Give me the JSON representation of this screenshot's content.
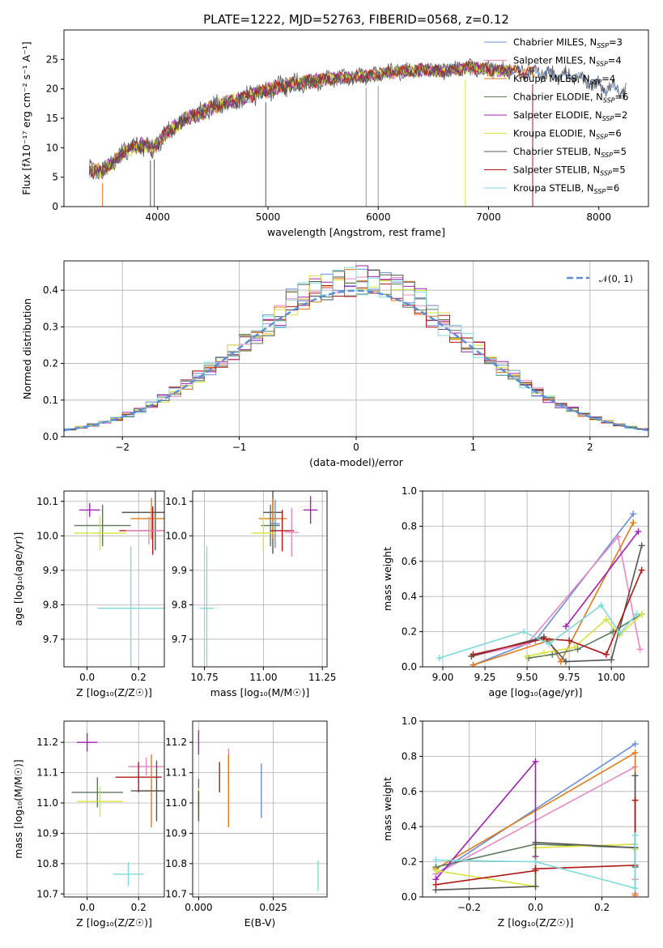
{
  "figure": {
    "title": "PLATE=1222, MJD=52763, FIBERID=0568, z=0.12"
  },
  "colors": {
    "Chabrier MILES": "#6a8fd6",
    "Salpeter MILES": "#e889c4",
    "Kroupa MILES": "#e07b1a",
    "Chabrier ELODIE": "#5a7a5a",
    "Salpeter ELODIE": "#a020b0",
    "Kroupa ELODIE": "#d9e33a",
    "Chabrier STELIB": "#555555",
    "Salpeter STELIB": "#b01818",
    "Kroupa STELIB": "#7fdada"
  },
  "chart_data": [
    {
      "id": "spectrum",
      "type": "line",
      "title": "PLATE=1222, MJD=52763, FIBERID=0568, z=0.12",
      "xlabel": "wavelength [Angstrom, rest frame]",
      "ylabel": "Flux [fλ10⁻¹⁷ erg cm⁻² s⁻¹ A⁻¹]",
      "xlim": [
        3150,
        8450
      ],
      "ylim": [
        0,
        30
      ],
      "xticks": [
        4000,
        5000,
        6000,
        7000,
        8000
      ],
      "yticks": [
        0,
        5,
        10,
        15,
        20,
        25
      ],
      "grid": false,
      "legend_position": "right",
      "legend": [
        {
          "label": "Chabrier MILES, N",
          "sub": "SSP",
          "suffix": "=3",
          "key": "Chabrier MILES"
        },
        {
          "label": "Salpeter MILES, N",
          "sub": "SSP",
          "suffix": "=4",
          "key": "Salpeter MILES"
        },
        {
          "label": "Kroupa MILES, N",
          "sub": "SSP",
          "suffix": "=4",
          "key": "Kroupa MILES"
        },
        {
          "label": "Chabrier ELODIE, N",
          "sub": "SSP",
          "suffix": "=6",
          "key": "Chabrier ELODIE"
        },
        {
          "label": "Salpeter ELODIE, N",
          "sub": "SSP",
          "suffix": "=2",
          "key": "Salpeter ELODIE"
        },
        {
          "label": "Kroupa ELODIE, N",
          "sub": "SSP",
          "suffix": "=6",
          "key": "Kroupa ELODIE"
        },
        {
          "label": "Chabrier STELIB, N",
          "sub": "SSP",
          "suffix": "=5",
          "key": "Chabrier STELIB"
        },
        {
          "label": "Salpeter STELIB, N",
          "sub": "SSP",
          "suffix": "=5",
          "key": "Salpeter STELIB"
        },
        {
          "label": "Kroupa STELIB, N",
          "sub": "SSP",
          "suffix": "=6",
          "key": "Kroupa STELIB"
        }
      ],
      "continuum": {
        "x": [
          3380,
          3500,
          3600,
          3700,
          3800,
          3900,
          3950,
          4050,
          4150,
          4250,
          4350,
          4450,
          4550,
          4700,
          4850,
          5000,
          5200,
          5400,
          5600,
          5800,
          6000,
          6200,
          6400,
          6600,
          6800,
          7000,
          7200,
          7400,
          7600,
          7800,
          8000,
          8200
        ],
        "y": [
          6.2,
          6.0,
          7.5,
          9.5,
          10.2,
          10.5,
          9.5,
          12.0,
          13.5,
          15.0,
          15.5,
          16.5,
          17.3,
          18.0,
          19.0,
          19.8,
          20.8,
          21.3,
          21.8,
          22.0,
          22.5,
          23.0,
          23.2,
          23.0,
          23.6,
          23.3,
          23.0,
          22.8,
          22.5,
          22.0,
          20.5,
          19.8
        ]
      },
      "absorption_dips_angstrom": [
        3500,
        3934,
        3969,
        4980,
        5890,
        6000,
        6790,
        7400
      ]
    },
    {
      "id": "residuals",
      "type": "histogram",
      "xlabel": "(data-model)/error",
      "ylabel": "Normed distribution",
      "xlim": [
        -2.5,
        2.5
      ],
      "ylim": [
        0,
        0.48
      ],
      "xticks": [
        -2,
        -1,
        0,
        1,
        2
      ],
      "yticks": [
        0.0,
        0.1,
        0.2,
        0.3,
        0.4
      ],
      "grid": true,
      "bin_width": 0.1,
      "legend": {
        "label": "𝒩(0, 1)",
        "position": "top-right"
      }
    },
    {
      "id": "age_vs_Z",
      "type": "scatter",
      "xlabel": "Z [log₁₀(Z/Z☉)]",
      "ylabel": "age  [log₁₀(age/yr)]",
      "xlim": [
        -0.09,
        0.3
      ],
      "ylim": [
        9.62,
        10.13
      ],
      "xticks": [
        0.0,
        0.2
      ],
      "yticks": [
        9.7,
        9.8,
        9.9,
        10.0,
        10.1
      ],
      "grid": true,
      "points": [
        {
          "series": "Salpeter ELODIE",
          "x": 0.01,
          "xerr": 0.04,
          "y": 10.075,
          "yerr": 0.02
        },
        {
          "series": "Chabrier STELIB",
          "x": 0.265,
          "xerr": 0.13,
          "y": 10.068,
          "yerr": 0.11
        },
        {
          "series": "Kroupa MILES",
          "x": 0.25,
          "xerr": 0.08,
          "y": 10.05,
          "yerr": 0.06
        },
        {
          "series": "Chabrier ELODIE",
          "x": 0.06,
          "xerr": 0.11,
          "y": 10.03,
          "yerr": 0.06
        },
        {
          "series": "Salpeter STELIB",
          "x": 0.255,
          "xerr": 0.13,
          "y": 10.015,
          "yerr": 0.07
        },
        {
          "series": "Salpeter MILES",
          "x": 0.24,
          "xerr": 0.09,
          "y": 10.015,
          "yerr": 0.04
        },
        {
          "series": "Kroupa ELODIE",
          "x": 0.05,
          "xerr": 0.1,
          "y": 10.008,
          "yerr": 0.05
        },
        {
          "series": "Kroupa STELIB",
          "x": 0.17,
          "xerr": 0.13,
          "y": 9.79,
          "yerr": 0.18
        }
      ]
    },
    {
      "id": "age_vs_mass",
      "type": "scatter",
      "xlabel": "mass [log₁₀(M/M☉)]",
      "ylabel": "",
      "xlim": [
        10.7,
        11.27
      ],
      "ylim": [
        9.62,
        10.13
      ],
      "xticks": [
        10.75,
        11.0,
        11.25
      ],
      "yticks": [
        9.7,
        9.8,
        9.9,
        10.0,
        10.1
      ],
      "grid": true,
      "points": [
        {
          "series": "Salpeter ELODIE",
          "x": 11.2,
          "xerr": 0.03,
          "y": 10.075,
          "yerr": 0.04
        },
        {
          "series": "Chabrier STELIB",
          "x": 11.04,
          "xerr": 0.04,
          "y": 10.068,
          "yerr": 0.12
        },
        {
          "series": "Kroupa MILES",
          "x": 11.04,
          "xerr": 0.06,
          "y": 10.05,
          "yerr": 0.06
        },
        {
          "series": "Chabrier MILES",
          "x": 11.05,
          "xerr": 0.02,
          "y": 10.035,
          "yerr": 0.07
        },
        {
          "series": "Chabrier ELODIE",
          "x": 11.03,
          "xerr": 0.04,
          "y": 10.03,
          "yerr": 0.06
        },
        {
          "series": "Salpeter STELIB",
          "x": 11.08,
          "xerr": 0.05,
          "y": 10.015,
          "yerr": 0.06
        },
        {
          "series": "Salpeter MILES",
          "x": 11.12,
          "xerr": 0.03,
          "y": 10.01,
          "yerr": 0.07
        },
        {
          "series": "Kroupa ELODIE",
          "x": 11.0,
          "xerr": 0.05,
          "y": 10.008,
          "yerr": 0.05
        },
        {
          "series": "Kroupa STELIB",
          "x": 10.76,
          "xerr": 0.03,
          "y": 9.79,
          "yerr": 0.18
        }
      ]
    },
    {
      "id": "weight_vs_age",
      "type": "line",
      "xlabel": "age  [log₁₀(age/yr)]",
      "ylabel": "mass weight",
      "xlim": [
        8.88,
        10.22
      ],
      "ylim": [
        0,
        1
      ],
      "xticks": [
        9.0,
        9.25,
        9.5,
        9.75,
        10.0
      ],
      "yticks": [
        0.0,
        0.2,
        0.4,
        0.6,
        0.8,
        1.0
      ],
      "grid": true,
      "series": [
        {
          "name": "Chabrier MILES",
          "x": [
            9.18,
            9.55,
            10.13
          ],
          "y": [
            0.01,
            0.15,
            0.87
          ]
        },
        {
          "name": "Salpeter MILES",
          "x": [
            9.17,
            9.5,
            10.04,
            10.17
          ],
          "y": [
            0.06,
            0.13,
            0.74,
            0.1
          ]
        },
        {
          "name": "Kroupa MILES",
          "x": [
            9.18,
            9.63,
            9.7,
            10.13
          ],
          "y": [
            0.01,
            0.15,
            0.03,
            0.82
          ]
        },
        {
          "name": "Chabrier ELODIE",
          "x": [
            9.51,
            9.65,
            9.8,
            10.01,
            10.18
          ],
          "y": [
            0.05,
            0.07,
            0.1,
            0.2,
            0.3
          ]
        },
        {
          "name": "Salpeter ELODIE",
          "x": [
            9.73,
            10.16
          ],
          "y": [
            0.23,
            0.77
          ]
        },
        {
          "name": "Kroupa ELODIE",
          "x": [
            9.5,
            9.6,
            9.78,
            9.97,
            10.05,
            10.18
          ],
          "y": [
            0.06,
            0.08,
            0.11,
            0.27,
            0.18,
            0.3
          ]
        },
        {
          "name": "Chabrier STELIB",
          "x": [
            9.17,
            9.6,
            9.73,
            10.0,
            10.18
          ],
          "y": [
            0.06,
            0.17,
            0.03,
            0.04,
            0.69
          ]
        },
        {
          "name": "Salpeter STELIB",
          "x": [
            9.18,
            9.6,
            9.75,
            9.97,
            10.18
          ],
          "y": [
            0.07,
            0.16,
            0.15,
            0.07,
            0.55
          ]
        },
        {
          "name": "Kroupa STELIB",
          "x": [
            8.98,
            9.48,
            9.63,
            9.94,
            10.05,
            10.15
          ],
          "y": [
            0.05,
            0.2,
            0.13,
            0.35,
            0.19,
            0.3
          ]
        }
      ]
    },
    {
      "id": "mass_vs_Z",
      "type": "scatter",
      "xlabel": "Z [log₁₀(Z/Z☉)]",
      "ylabel": "mass [log₁₀(M/M☉)]",
      "xlim": [
        -0.09,
        0.3
      ],
      "ylim": [
        10.69,
        11.27
      ],
      "xticks": [
        0.0,
        0.2
      ],
      "yticks": [
        10.7,
        10.8,
        10.9,
        11.0,
        11.1,
        11.2
      ],
      "grid": true,
      "points": [
        {
          "series": "Salpeter ELODIE",
          "x": 0.0,
          "xerr": 0.04,
          "y": 11.2,
          "yerr": 0.03
        },
        {
          "series": "Salpeter MILES",
          "x": 0.23,
          "xerr": 0.07,
          "y": 11.12,
          "yerr": 0.03
        },
        {
          "series": "Salpeter STELIB",
          "x": 0.2,
          "xerr": 0.09,
          "y": 11.085,
          "yerr": 0.05
        },
        {
          "series": "Kroupa MILES",
          "x": 0.25,
          "xerr": 0.05,
          "y": 11.04,
          "yerr": 0.12
        },
        {
          "series": "Chabrier STELIB",
          "x": 0.27,
          "xerr": 0.1,
          "y": 11.04,
          "yerr": 0.1
        },
        {
          "series": "Chabrier ELODIE",
          "x": 0.04,
          "xerr": 0.1,
          "y": 11.035,
          "yerr": 0.05
        },
        {
          "series": "Kroupa ELODIE",
          "x": 0.05,
          "xerr": 0.09,
          "y": 11.005,
          "yerr": 0.05
        },
        {
          "series": "Kroupa STELIB",
          "x": 0.16,
          "xerr": 0.06,
          "y": 10.765,
          "yerr": 0.04
        }
      ]
    },
    {
      "id": "mass_vs_ebv",
      "type": "scatter",
      "xlabel": "E(B-V)",
      "ylabel": "",
      "xlim": [
        -0.002,
        0.043
      ],
      "ylim": [
        10.69,
        11.27
      ],
      "xticks": [
        0.0,
        0.025
      ],
      "yticks": [
        10.7,
        10.8,
        10.9,
        11.0,
        11.1,
        11.2
      ],
      "grid": true,
      "points": [
        {
          "series": "Salpeter ELODIE",
          "x": 0.0,
          "y": 11.2,
          "yerr": 0.04
        },
        {
          "series": "Salpeter MILES",
          "x": 0.01,
          "y": 11.12,
          "yerr": 0.06
        },
        {
          "series": "Salpeter STELIB",
          "x": 0.007,
          "y": 11.085,
          "yerr": 0.05
        },
        {
          "series": "Kroupa MILES",
          "x": 0.01,
          "y": 11.04,
          "yerr": 0.12
        },
        {
          "series": "Chabrier MILES",
          "x": 0.021,
          "y": 11.04,
          "yerr": 0.09
        },
        {
          "series": "Chabrier ELODIE",
          "x": 0.0,
          "y": 11.03,
          "yerr": 0.05
        },
        {
          "series": "Kroupa ELODIE",
          "x": 0.0,
          "y": 11.0,
          "yerr": 0.05
        },
        {
          "series": "Chabrier STELIB",
          "x": 0.0,
          "y": 10.99,
          "yerr": 0.05
        },
        {
          "series": "Kroupa STELIB",
          "x": 0.04,
          "y": 10.76,
          "yerr": 0.05
        }
      ]
    },
    {
      "id": "weight_vs_Z",
      "type": "line",
      "xlabel": "Z [log₁₀(Z/Z☉)]",
      "ylabel": "mass weight",
      "xlim": [
        -0.34,
        0.34
      ],
      "ylim": [
        0,
        1
      ],
      "xticks": [
        -0.2,
        0.0,
        0.2
      ],
      "yticks": [
        0.0,
        0.2,
        0.4,
        0.6,
        0.8,
        1.0
      ],
      "grid": true,
      "series": [
        {
          "name": "Chabrier MILES",
          "x": [
            -0.3,
            0.3
          ],
          "y": [
            0.13,
            0.87
          ]
        },
        {
          "name": "Salpeter MILES",
          "x": [
            -0.3,
            0.3,
            0.3,
            0.3
          ],
          "y": [
            0.13,
            0.74,
            0.1,
            0.02
          ]
        },
        {
          "name": "Kroupa MILES",
          "x": [
            -0.3,
            0.3,
            0.3
          ],
          "y": [
            0.16,
            0.82,
            0.01
          ]
        },
        {
          "name": "Chabrier ELODIE",
          "x": [
            -0.3,
            0.0,
            0.3
          ],
          "y": [
            0.17,
            0.3,
            0.28
          ]
        },
        {
          "name": "Salpeter ELODIE",
          "x": [
            -0.3,
            0.0,
            0.0
          ],
          "y": [
            0.1,
            0.77,
            0.23
          ]
        },
        {
          "name": "Kroupa ELODIE",
          "x": [
            -0.3,
            0.0,
            0.0,
            0.3,
            0.3
          ],
          "y": [
            0.15,
            0.06,
            0.28,
            0.3,
            0.27
          ]
        },
        {
          "name": "Chabrier STELIB",
          "x": [
            -0.3,
            0.0,
            0.0,
            0.3,
            0.3,
            0.3
          ],
          "y": [
            0.04,
            0.06,
            0.31,
            0.28,
            0.69,
            0.17
          ]
        },
        {
          "name": "Salpeter STELIB",
          "x": [
            -0.3,
            0.0,
            0.0,
            0.3,
            0.3
          ],
          "y": [
            0.07,
            0.15,
            0.16,
            0.18,
            0.55
          ]
        },
        {
          "name": "Kroupa STELIB",
          "x": [
            -0.3,
            0.0,
            0.3,
            0.3,
            0.3
          ],
          "y": [
            0.21,
            0.2,
            0.05,
            0.35,
            0.3
          ]
        }
      ]
    }
  ]
}
